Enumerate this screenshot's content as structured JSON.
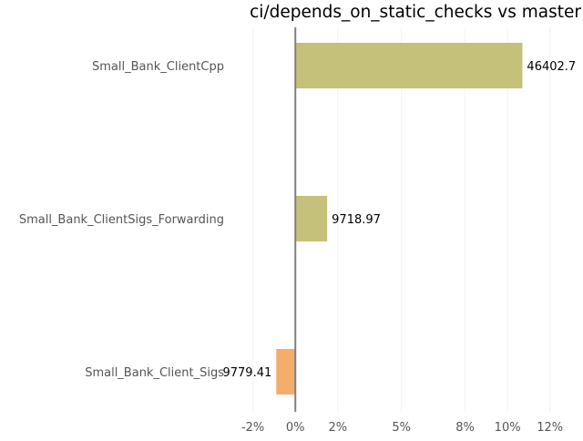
{
  "chart_data": {
    "type": "bar",
    "orientation": "horizontal",
    "title": "ci/depends_on_static_checks vs master",
    "xlabel": "",
    "ylabel": "",
    "xlim": [
      -2.5,
      13
    ],
    "x_ticks": [
      -2,
      0,
      2,
      5,
      8,
      10,
      12
    ],
    "x_tick_labels": [
      "-2%",
      "0%",
      "2%",
      "5%",
      "8%",
      "10%",
      "12%"
    ],
    "grid": true,
    "legend": "none",
    "categories": [
      "Small_Bank_ClientCpp",
      "Small_Bank_ClientSigs_Forwarding",
      "Small_Bank_Client_Sigs"
    ],
    "values": [
      10.7,
      1.5,
      -0.9
    ],
    "data_labels": [
      "46402.7",
      "9718.97",
      "9779.41"
    ],
    "colors": {
      "positive": "#c5c07a",
      "negative": "#f5ad6e",
      "zero_line": "#808080",
      "grid": "#f2f2f2",
      "tick_text": "#555555",
      "label_text": "#000000"
    }
  }
}
